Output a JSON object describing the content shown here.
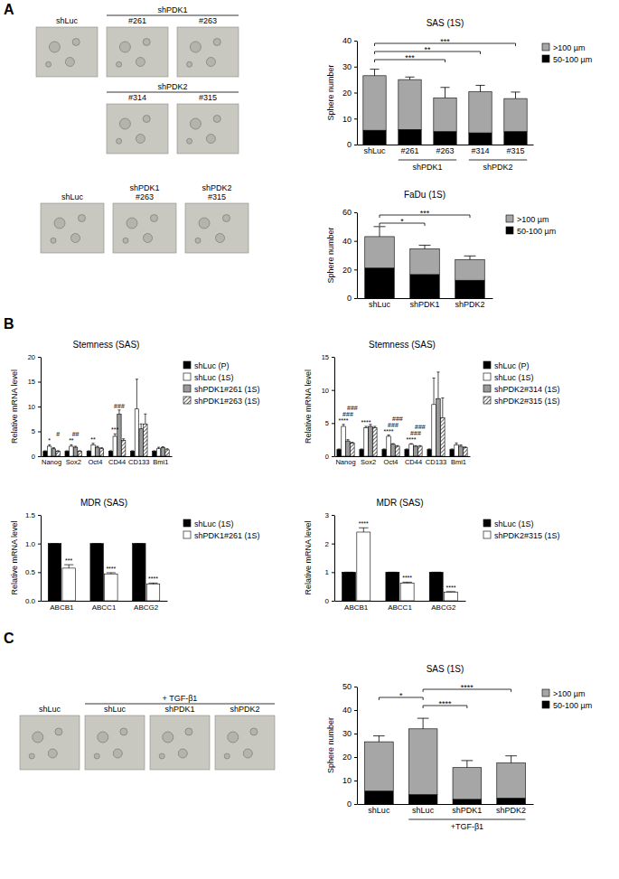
{
  "panels": [
    "A",
    "B",
    "C"
  ],
  "image_panels": [
    {
      "tiles": [
        {
          "label": "shLuc"
        },
        {
          "label": "#261"
        },
        {
          "label": "#263"
        },
        {
          "label": "#314"
        },
        {
          "label": "#315"
        }
      ],
      "groups": [
        {
          "label": "shPDK1",
          "span": [
            1,
            2
          ]
        },
        {
          "label": "shPDK2",
          "span": [
            3,
            4
          ]
        }
      ]
    },
    {
      "tiles": [
        {
          "label": "shLuc"
        },
        {
          "label": "shPDK1",
          "sublabel": "#263"
        },
        {
          "label": "shPDK2",
          "sublabel": "#315"
        }
      ]
    },
    {
      "tiles": [
        {
          "label": "shLuc"
        },
        {
          "label": "shLuc"
        },
        {
          "label": "shPDK1"
        },
        {
          "label": "shPDK2"
        }
      ],
      "groups": [
        {
          "label": "+ TGF-β1",
          "span": [
            1,
            3
          ]
        }
      ]
    }
  ],
  "chart_data": [
    {
      "type": "bar",
      "title": "SAS (1S)",
      "y_label": "Sphere number",
      "stacked": true,
      "legend": "right",
      "categories": [
        "shLuc",
        "#261",
        "#263",
        "#314",
        "#315"
      ],
      "category_groups": [
        {
          "label": "shPDK1",
          "span": [
            1,
            2
          ]
        },
        {
          "label": "shPDK2",
          "span": [
            3,
            4
          ]
        }
      ],
      "series": [
        {
          "name": ">100 µm",
          "color": "#a6a6a6",
          "values": [
            21,
            19.2,
            13,
            15.8,
            12.7
          ],
          "errors": [
            2.5,
            1,
            4,
            2.5,
            2.5
          ]
        },
        {
          "name": "50-100 µm",
          "color": "#000000",
          "values": [
            5.5,
            5.8,
            5,
            4.5,
            5
          ],
          "errors": [
            2.5,
            1,
            2,
            2.5,
            2.5
          ]
        }
      ],
      "ylim": [
        0,
        40
      ],
      "yticks": [
        0,
        10,
        20,
        30,
        40
      ],
      "comparisons": [
        {
          "from": 0,
          "to": 4,
          "text": "***"
        },
        {
          "from": 0,
          "to": 3,
          "text": "**"
        },
        {
          "from": 0,
          "to": 2,
          "text": "***"
        }
      ]
    },
    {
      "type": "bar",
      "title": "FaDu (1S)",
      "y_label": "Sphere number",
      "stacked": true,
      "legend": "right",
      "categories": [
        "shLuc",
        "shPDK1",
        "shPDK2"
      ],
      "series": [
        {
          "name": ">100 µm",
          "color": "#a6a6a6",
          "values": [
            22,
            18,
            14.5
          ],
          "errors": [
            7,
            2.5,
            2.5
          ]
        },
        {
          "name": "50-100 µm",
          "color": "#000000",
          "values": [
            21,
            16.5,
            12.5
          ],
          "errors": [
            3.5,
            6,
            4
          ]
        }
      ],
      "ylim": [
        0,
        60
      ],
      "yticks": [
        0,
        20,
        40,
        60
      ],
      "comparisons": [
        {
          "from": 0,
          "to": 2,
          "text": "***"
        },
        {
          "from": 0,
          "to": 1,
          "text": "*"
        }
      ]
    },
    {
      "type": "bar",
      "title": "Stemness (SAS)",
      "y_label": "Relative mRNA level",
      "legend": "right",
      "categories": [
        "Nanog",
        "Sox2",
        "Oct4",
        "CD44",
        "CD133",
        "Bmi1"
      ],
      "series": [
        {
          "name": "shLuc (P)",
          "color": "#000000",
          "values": [
            1,
            1,
            1,
            1,
            1,
            1
          ],
          "errors": [
            0.1,
            0.1,
            0.1,
            0.1,
            0.1,
            0.1
          ]
        },
        {
          "name": "shLuc (1S)",
          "color": "#ffffff",
          "values": [
            2,
            2,
            2.3,
            4,
            9.5,
            1.5
          ],
          "errors": [
            0.3,
            0.3,
            0.3,
            0.5,
            6,
            0.3
          ]
        },
        {
          "name": "shPDK1#261 (1S)",
          "color": "#999999",
          "values": [
            1.5,
            1.8,
            1.8,
            8.5,
            5.5,
            1.7
          ],
          "errors": [
            0.2,
            0.2,
            0.2,
            0.8,
            1,
            0.2
          ]
        },
        {
          "name": "shPDK1#263 (1S)",
          "color": "#ffffff",
          "marker": "hatch",
          "values": [
            1,
            1,
            1.5,
            3.2,
            6.5,
            1.3
          ],
          "errors": [
            0.1,
            0.1,
            0.2,
            0.3,
            2,
            0.2
          ]
        }
      ],
      "ylim": [
        0,
        20
      ],
      "yticks": [
        0,
        5,
        10,
        15,
        20
      ],
      "annotations": [
        {
          "series": 1,
          "category": 0,
          "text": "*"
        },
        {
          "series": 3,
          "category": 0,
          "text": "#"
        },
        {
          "series": 1,
          "category": 1,
          "text": "**"
        },
        {
          "series": 2,
          "category": 1,
          "text": "##"
        },
        {
          "series": 1,
          "category": 2,
          "text": "**"
        },
        {
          "series": 1,
          "category": 3,
          "text": "***"
        },
        {
          "series": 2,
          "category": 3,
          "text": "###"
        }
      ]
    },
    {
      "type": "bar",
      "title": "Stemness (SAS)",
      "y_label": "Relative mRNA level",
      "legend": "right",
      "categories": [
        "Nanog",
        "Sox2",
        "Oct4",
        "CD44",
        "CD133",
        "Bmi1"
      ],
      "series": [
        {
          "name": "shLuc (P)",
          "color": "#000000",
          "values": [
            1,
            1,
            1,
            1,
            1,
            1
          ],
          "errors": [
            0.1,
            0.1,
            0.1,
            0.1,
            0.1,
            0.1
          ]
        },
        {
          "name": "shLuc (1S)",
          "color": "#ffffff",
          "values": [
            4.5,
            4.3,
            3,
            1.8,
            7.8,
            1.7
          ],
          "errors": [
            0.3,
            0.2,
            0.2,
            0.1,
            4,
            0.3
          ]
        },
        {
          "name": "shPDK2#314 (1S)",
          "color": "#999999",
          "values": [
            2.3,
            4.5,
            1.8,
            1.5,
            8.7,
            1.5
          ],
          "errors": [
            0.2,
            0.3,
            0.1,
            0.1,
            4,
            0.2
          ]
        },
        {
          "name": "shPDK2#315 (1S)",
          "color": "#ffffff",
          "marker": "hatch",
          "values": [
            2,
            4.3,
            1.5,
            1.5,
            5.8,
            1.3
          ],
          "errors": [
            0.1,
            0.2,
            0.1,
            0.1,
            3,
            0.1
          ]
        }
      ],
      "ylim": [
        0,
        15
      ],
      "yticks": [
        0,
        5,
        10,
        15
      ],
      "annotations": [
        {
          "series": 1,
          "category": 0,
          "text": "****"
        },
        {
          "series": 2,
          "category": 0,
          "text": "###"
        },
        {
          "series": 3,
          "category": 0,
          "text": "###"
        },
        {
          "series": 1,
          "category": 1,
          "text": "****"
        },
        {
          "series": 1,
          "category": 2,
          "text": "****"
        },
        {
          "series": 2,
          "category": 2,
          "text": "###"
        },
        {
          "series": 3,
          "category": 2,
          "text": "###"
        },
        {
          "series": 1,
          "category": 3,
          "text": "****"
        },
        {
          "series": 2,
          "category": 3,
          "text": "###"
        },
        {
          "series": 3,
          "category": 3,
          "text": "###"
        }
      ]
    },
    {
      "type": "bar",
      "title": "MDR (SAS)",
      "y_label": "Relative mRNA level",
      "legend": "right",
      "categories": [
        "ABCB1",
        "ABCC1",
        "ABCG2"
      ],
      "series": [
        {
          "name": "shLuc (1S)",
          "color": "#000000",
          "values": [
            1,
            1,
            1
          ],
          "errors": [
            0,
            0,
            0
          ]
        },
        {
          "name": "shPDK1#261 (1S)",
          "color": "#ffffff",
          "values": [
            0.57,
            0.47,
            0.29
          ],
          "errors": [
            0.06,
            0.02,
            0.02
          ]
        }
      ],
      "ylim": [
        0,
        1.5
      ],
      "yticks": [
        {
          "value": 0,
          "label": "0.0"
        },
        {
          "value": 0.5,
          "label": "0.5"
        },
        {
          "value": 1,
          "label": "1.0"
        },
        {
          "value": 1.5,
          "label": "1.5"
        }
      ],
      "annotations": [
        {
          "series": 1,
          "category": 0,
          "text": "***"
        },
        {
          "series": 1,
          "category": 1,
          "text": "****"
        },
        {
          "series": 1,
          "category": 2,
          "text": "****"
        }
      ]
    },
    {
      "type": "bar",
      "title": "MDR (SAS)",
      "y_label": "Relative mRNA level",
      "legend": "right",
      "categories": [
        "ABCB1",
        "ABCC1",
        "ABCG2"
      ],
      "series": [
        {
          "name": "shLuc (1S)",
          "color": "#000000",
          "values": [
            1,
            1,
            1
          ],
          "errors": [
            0,
            0,
            0
          ]
        },
        {
          "name": "shPDK2#315 (1S)",
          "color": "#ffffff",
          "values": [
            2.4,
            0.62,
            0.3
          ],
          "errors": [
            0.15,
            0.03,
            0.02
          ]
        }
      ],
      "ylim": [
        0,
        3
      ],
      "yticks": [
        0,
        1,
        2,
        3
      ],
      "annotations": [
        {
          "series": 1,
          "category": 0,
          "text": "****"
        },
        {
          "series": 1,
          "category": 1,
          "text": "****"
        },
        {
          "series": 1,
          "category": 2,
          "text": "****"
        }
      ]
    },
    {
      "type": "bar",
      "title": "SAS (1S)",
      "y_label": "Sphere number",
      "stacked": true,
      "legend": "right",
      "categories": [
        "shLuc",
        "shLuc",
        "shPDK1",
        "shPDK2"
      ],
      "category_groups": [
        {
          "label": "+TGF-β1",
          "span": [
            1,
            3
          ]
        }
      ],
      "series": [
        {
          "name": ">100 µm",
          "color": "#a6a6a6",
          "values": [
            21,
            28,
            13.5,
            15
          ],
          "errors": [
            2.5,
            4.5,
            3,
            3
          ]
        },
        {
          "name": "50-100 µm",
          "color": "#000000",
          "values": [
            5.5,
            4,
            2,
            2.5
          ],
          "errors": [
            2.5,
            1,
            0.5,
            1
          ]
        }
      ],
      "ylim": [
        0,
        50
      ],
      "yticks": [
        0,
        10,
        20,
        30,
        40,
        50
      ],
      "comparisons": [
        {
          "from": 1,
          "to": 3,
          "text": "****"
        },
        {
          "from": 0,
          "to": 1,
          "text": "*"
        },
        {
          "from": 1,
          "to": 2,
          "text": "****"
        }
      ]
    }
  ]
}
